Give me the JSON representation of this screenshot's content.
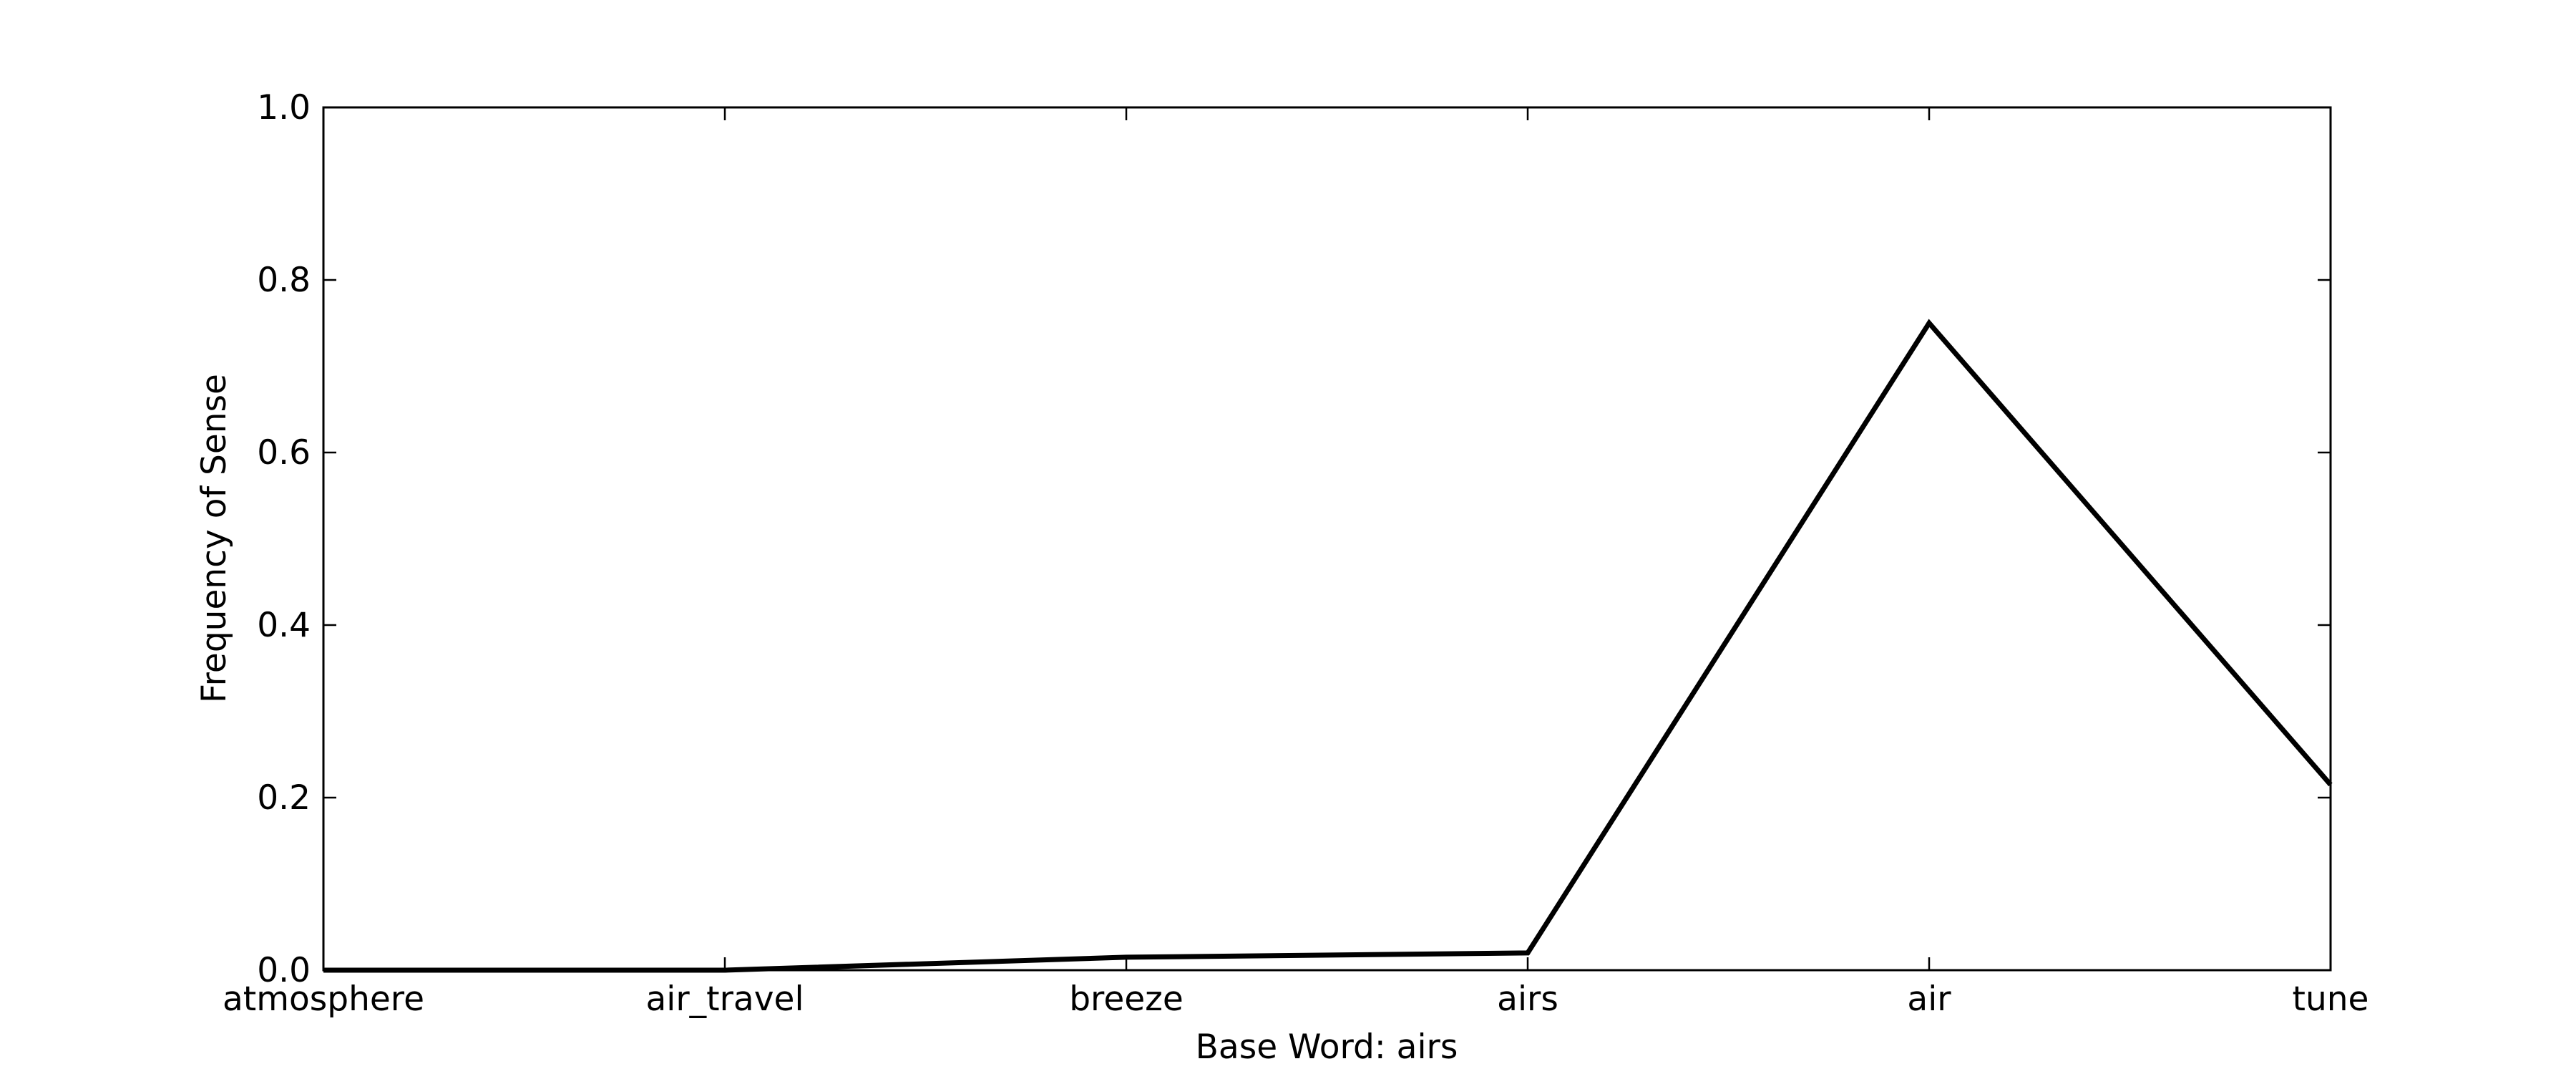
{
  "chart_data": {
    "type": "line",
    "title": "",
    "xlabel": "Base Word: airs",
    "ylabel": "Frequency of Sense",
    "categories": [
      "atmosphere",
      "air_travel",
      "breeze",
      "airs",
      "air",
      "tune"
    ],
    "series": [
      {
        "values": [
          0.0,
          0.0,
          0.015,
          0.02,
          0.75,
          0.215
        ]
      }
    ],
    "ylim": [
      0.0,
      1.0
    ],
    "yticks": [
      "0.0",
      "0.2",
      "0.4",
      "0.6",
      "0.8",
      "1.0"
    ],
    "grid": false,
    "legend": "none",
    "line_color": "#000000"
  }
}
